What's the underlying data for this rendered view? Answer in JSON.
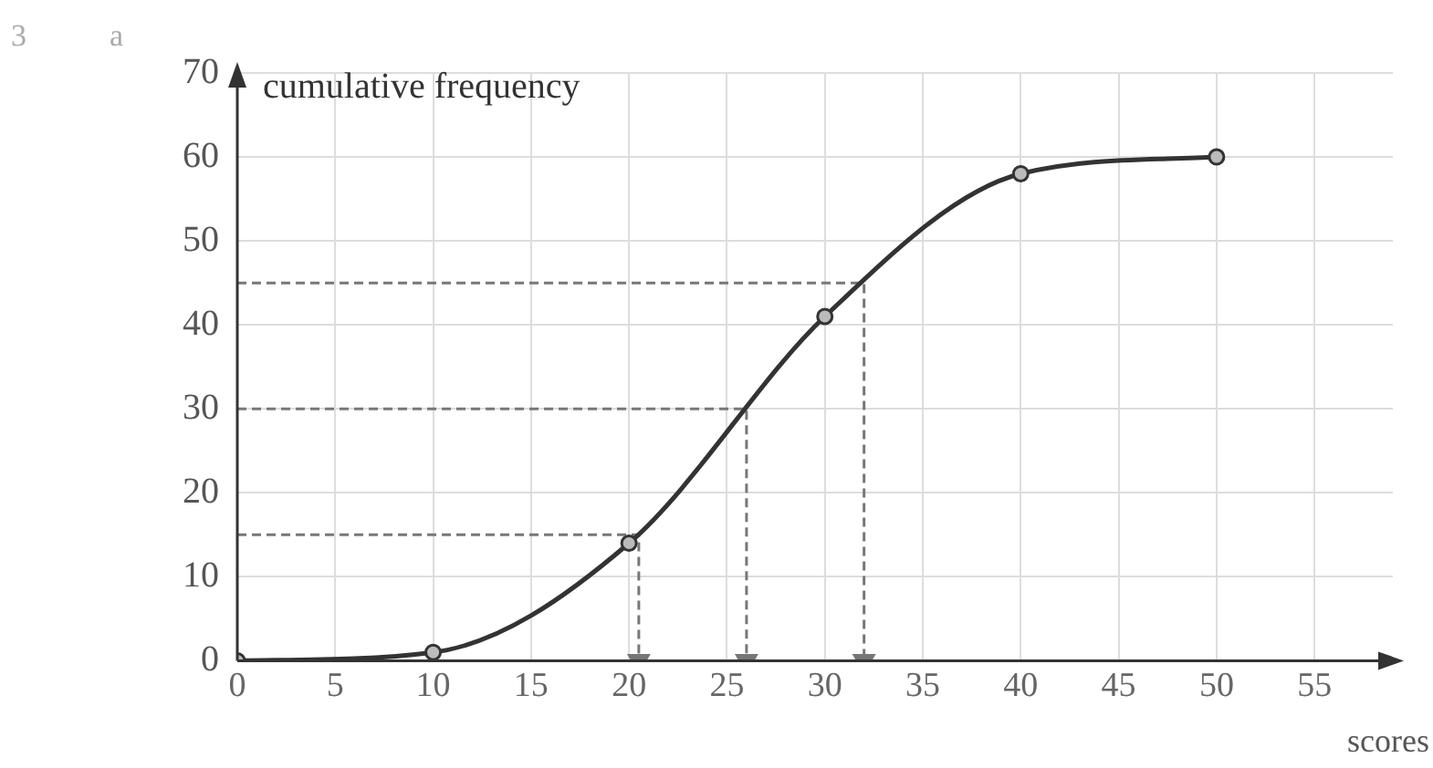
{
  "chart_data": {
    "type": "line",
    "ylabel": "cumulative frequency",
    "xlabel": "scores",
    "annotations": [
      "3",
      "a"
    ],
    "xlim": [
      0,
      59
    ],
    "xticks": [
      0,
      5,
      10,
      15,
      20,
      25,
      30,
      35,
      40,
      45,
      50,
      55
    ],
    "ylim": [
      0,
      70
    ],
    "yticks": [
      0,
      10,
      20,
      30,
      40,
      50,
      60,
      70
    ],
    "grid": true,
    "marker": "circle",
    "line_style": "solid",
    "series": [
      {
        "color": "#333333",
        "x": [
          0,
          10,
          20,
          30,
          40,
          50
        ],
        "values": [
          0,
          1,
          14,
          41,
          58,
          60
        ]
      },
      {
        "type": "line",
        "color": "#777777",
        "line_style": "dashed",
        "marker": "none",
        "x": [
          0,
          20.5,
          20.5
        ],
        "values": [
          15,
          15,
          0
        ]
      },
      {
        "type": "line",
        "color": "#777777",
        "line_style": "dashed",
        "marker": "none",
        "x": [
          0,
          26,
          26
        ],
        "values": [
          30,
          30,
          0
        ]
      },
      {
        "type": "line",
        "color": "#777777",
        "line_style": "dashed",
        "marker": "none",
        "x": [
          0,
          32,
          32
        ],
        "values": [
          45,
          45,
          0
        ]
      }
    ]
  }
}
